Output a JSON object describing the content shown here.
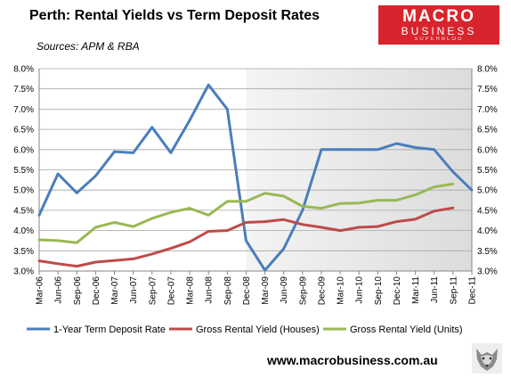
{
  "title": "Perth: Rental Yields vs Term Deposit Rates",
  "subtitle": "Sources: APM & RBA",
  "logo": {
    "line1": "MACRO",
    "line2": "BUSINESS",
    "line3": "SUPERBLOG"
  },
  "website": "www.macrobusiness.com.au",
  "colors": {
    "deposit": "#4a7ebb",
    "houses": "#be4b48",
    "units": "#98b954",
    "shade": "#dcdcdc"
  },
  "chart_data": {
    "type": "line",
    "categories": [
      "Mar-06",
      "Jun-06",
      "Sep-06",
      "Dec-06",
      "Mar-07",
      "Jun-07",
      "Sep-07",
      "Dec-07",
      "Mar-08",
      "Jun-08",
      "Sep-08",
      "Dec-08",
      "Mar-09",
      "Jun-09",
      "Sep-09",
      "Dec-09",
      "Mar-10",
      "Jun-10",
      "Sep-10",
      "Dec-10",
      "Mar-11",
      "Jun-11",
      "Sep-11",
      "Dec-11"
    ],
    "ylim": [
      3.0,
      8.0
    ],
    "yticks": [
      "3.0%",
      "3.5%",
      "4.0%",
      "4.5%",
      "5.0%",
      "5.5%",
      "6.0%",
      "6.5%",
      "7.0%",
      "7.5%",
      "8.0%"
    ],
    "shaded_range": [
      "Dec-08",
      "Dec-11"
    ],
    "grid": true,
    "legend_position": "bottom",
    "series": [
      {
        "name": "1-Year Term Deposit Rate",
        "color": "#4a7ebb",
        "values": [
          4.38,
          5.4,
          4.93,
          5.35,
          5.95,
          5.92,
          6.55,
          5.92,
          6.72,
          7.6,
          7.0,
          3.75,
          3.02,
          3.55,
          4.5,
          6.0,
          6.0,
          6.0,
          6.0,
          6.15,
          6.05,
          6.0,
          5.45,
          5.0
        ]
      },
      {
        "name": "Gross Rental Yield (Houses)",
        "color": "#be4b48",
        "values": [
          3.25,
          3.18,
          3.12,
          3.22,
          3.26,
          3.3,
          3.42,
          3.56,
          3.72,
          3.98,
          4.0,
          4.2,
          4.22,
          4.27,
          4.15,
          4.08,
          4.0,
          4.08,
          4.1,
          4.22,
          4.28,
          4.48,
          4.56,
          null
        ]
      },
      {
        "name": "Gross Rental Yield (Units)",
        "color": "#98b954",
        "values": [
          3.77,
          3.75,
          3.7,
          4.08,
          4.2,
          4.1,
          4.3,
          4.45,
          4.55,
          4.38,
          4.72,
          4.72,
          4.92,
          4.85,
          4.6,
          4.55,
          4.67,
          4.68,
          4.75,
          4.75,
          4.88,
          5.08,
          5.15,
          null
        ]
      }
    ]
  }
}
